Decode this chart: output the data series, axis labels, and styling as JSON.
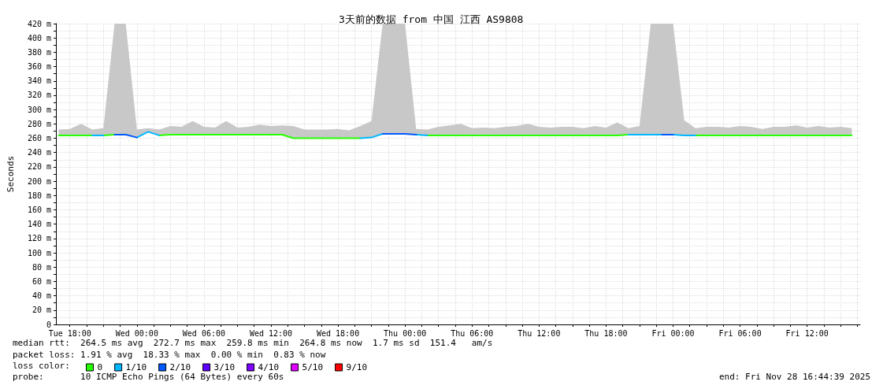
{
  "chart_data": {
    "type": "line",
    "title": "3天前的数据 from 中国 江西 AS9808",
    "ylabel": "Seconds",
    "legend_title": "loss color:",
    "annotations": [
      "median rtt:  264.5 ms avg  272.7 ms max  259.8 ms min  264.8 ms now  1.7 ms sd  151.4   am/s",
      "packet loss: 1.91 % avg  18.33 % max  0.00 % min  0.83 % now",
      "probe:       10 ICMP Echo Pings (64 Bytes) every 60s",
      "end: Fri Nov 28 16:44:39 2025"
    ],
    "x": [
      "2025-11-25T17:00",
      "2025-11-25T18:00",
      "2025-11-25T19:00",
      "2025-11-25T20:00",
      "2025-11-25T21:00",
      "2025-11-25T22:00",
      "2025-11-25T23:00",
      "2025-11-26T00:00",
      "2025-11-26T01:00",
      "2025-11-26T02:00",
      "2025-11-26T03:00",
      "2025-11-26T04:00",
      "2025-11-26T05:00",
      "2025-11-26T06:00",
      "2025-11-26T07:00",
      "2025-11-26T08:00",
      "2025-11-26T09:00",
      "2025-11-26T10:00",
      "2025-11-26T11:00",
      "2025-11-26T12:00",
      "2025-11-26T13:00",
      "2025-11-26T14:00",
      "2025-11-26T15:00",
      "2025-11-26T16:00",
      "2025-11-26T17:00",
      "2025-11-26T18:00",
      "2025-11-26T19:00",
      "2025-11-26T20:00",
      "2025-11-26T21:00",
      "2025-11-26T22:00",
      "2025-11-26T23:00",
      "2025-11-27T00:00",
      "2025-11-27T01:00",
      "2025-11-27T02:00",
      "2025-11-27T03:00",
      "2025-11-27T04:00",
      "2025-11-27T05:00",
      "2025-11-27T06:00",
      "2025-11-27T07:00",
      "2025-11-27T08:00",
      "2025-11-27T09:00",
      "2025-11-27T10:00",
      "2025-11-27T11:00",
      "2025-11-27T12:00",
      "2025-11-27T13:00",
      "2025-11-27T14:00",
      "2025-11-27T15:00",
      "2025-11-27T16:00",
      "2025-11-27T17:00",
      "2025-11-27T18:00",
      "2025-11-27T19:00",
      "2025-11-27T20:00",
      "2025-11-27T21:00",
      "2025-11-27T22:00",
      "2025-11-27T23:00",
      "2025-11-28T00:00",
      "2025-11-28T01:00",
      "2025-11-28T02:00",
      "2025-11-28T03:00",
      "2025-11-28T04:00",
      "2025-11-28T05:00",
      "2025-11-28T06:00",
      "2025-11-28T07:00",
      "2025-11-28T08:00",
      "2025-11-28T09:00",
      "2025-11-28T10:00",
      "2025-11-28T11:00",
      "2025-11-28T12:00",
      "2025-11-28T13:00",
      "2025-11-28T14:00",
      "2025-11-28T15:00",
      "2025-11-28T16:00"
    ],
    "series": [
      {
        "name": "0",
        "color": "#26ff00",
        "values": [
          264,
          264,
          264,
          264,
          264,
          265,
          null,
          null,
          null,
          264,
          265,
          265,
          265,
          265,
          265,
          265,
          265,
          265,
          265,
          265,
          265,
          260,
          260,
          260,
          260,
          260,
          260,
          260,
          null,
          null,
          null,
          null,
          null,
          264,
          264,
          264,
          264,
          264,
          264,
          264,
          264,
          264,
          264,
          264,
          264,
          264,
          264,
          264,
          264,
          264,
          264,
          265,
          null,
          null,
          null,
          null,
          null,
          264,
          264,
          264,
          264,
          264,
          264,
          264,
          264,
          264,
          264,
          264,
          264,
          264,
          264,
          264
        ],
        "lower": [
          264,
          264,
          264,
          264,
          264,
          265,
          265,
          261,
          269,
          264,
          265,
          265,
          265,
          265,
          265,
          265,
          265,
          265,
          265,
          265,
          265,
          260,
          260,
          260,
          260,
          260,
          260,
          260,
          261,
          266,
          266,
          266,
          265,
          264,
          264,
          264,
          264,
          264,
          264,
          264,
          264,
          264,
          264,
          264,
          264,
          264,
          264,
          264,
          264,
          264,
          264,
          265,
          265,
          265,
          265,
          265,
          264,
          264,
          264,
          264,
          264,
          264,
          264,
          264,
          264,
          264,
          264,
          264,
          264,
          264,
          264,
          264
        ],
        "upper": [
          272,
          273,
          280,
          272,
          274,
          420,
          420,
          272,
          274,
          272,
          277,
          276,
          284,
          276,
          275,
          284,
          275,
          276,
          279,
          277,
          278,
          277,
          272,
          272,
          272,
          273,
          271,
          277,
          284,
          420,
          420,
          420,
          273,
          272,
          276,
          278,
          280,
          274,
          275,
          274,
          276,
          277,
          280,
          276,
          275,
          276,
          276,
          274,
          277,
          275,
          282,
          274,
          277,
          420,
          420,
          420,
          285,
          274,
          276,
          276,
          275,
          277,
          276,
          273,
          276,
          276,
          278,
          275,
          277,
          275,
          276,
          274
        ]
      },
      {
        "name": "1/10",
        "color": "#00b8ff",
        "values": [
          null,
          null,
          null,
          264,
          264,
          null,
          null,
          261,
          269,
          264,
          null,
          null,
          null,
          null,
          null,
          null,
          null,
          null,
          null,
          null,
          null,
          null,
          null,
          null,
          null,
          null,
          null,
          260,
          261,
          266,
          null,
          null,
          265,
          264,
          null,
          null,
          null,
          null,
          null,
          null,
          null,
          null,
          null,
          null,
          null,
          null,
          null,
          null,
          null,
          null,
          null,
          265,
          265,
          265,
          265,
          265,
          264,
          264,
          null,
          null,
          null,
          null,
          null,
          null,
          null,
          null,
          null,
          null,
          null,
          null,
          null,
          null
        ]
      },
      {
        "name": "2/10",
        "color": "#0059ff",
        "values": [
          null,
          null,
          null,
          null,
          null,
          265,
          265,
          261,
          null,
          null,
          null,
          null,
          null,
          null,
          null,
          null,
          null,
          null,
          null,
          null,
          null,
          null,
          null,
          null,
          null,
          null,
          null,
          null,
          null,
          266,
          266,
          266,
          265,
          null,
          null,
          null,
          null,
          null,
          null,
          null,
          null,
          null,
          null,
          null,
          null,
          null,
          null,
          null,
          null,
          null,
          null,
          null,
          null,
          null,
          265,
          265,
          null,
          null,
          null,
          null,
          null,
          null,
          null,
          null,
          null,
          null,
          null,
          null,
          null,
          null,
          null,
          null
        ]
      },
      {
        "name": "3/10",
        "color": "#5e00ff",
        "values": [
          null,
          null,
          null,
          null,
          null,
          null,
          null,
          null,
          null,
          null,
          null,
          null,
          null,
          null,
          null,
          null,
          null,
          null,
          null,
          null,
          null,
          null,
          null,
          null,
          null,
          null,
          null,
          null,
          null,
          null,
          null,
          null,
          null,
          null,
          null,
          null,
          null,
          null,
          null,
          null,
          null,
          null,
          null,
          null,
          null,
          null,
          null,
          null,
          null,
          null,
          null,
          null,
          null,
          null,
          null,
          null,
          null,
          null,
          null,
          null,
          null,
          null,
          null,
          null,
          null,
          null,
          null,
          null,
          null,
          null,
          null,
          null
        ]
      },
      {
        "name": "4/10",
        "color": "#7e00ff",
        "values": [
          null,
          null,
          null,
          null,
          null,
          null,
          null,
          null,
          null,
          null,
          null,
          null,
          null,
          null,
          null,
          null,
          null,
          null,
          null,
          null,
          null,
          null,
          null,
          null,
          null,
          null,
          null,
          null,
          null,
          null,
          null,
          null,
          null,
          null,
          null,
          null,
          null,
          null,
          null,
          null,
          null,
          null,
          null,
          null,
          null,
          null,
          null,
          null,
          null,
          null,
          null,
          null,
          null,
          null,
          null,
          null,
          null,
          null,
          null,
          null,
          null,
          null,
          null,
          null,
          null,
          null,
          null,
          null,
          null,
          null,
          null,
          null
        ]
      },
      {
        "name": "5/10",
        "color": "#dd00ff",
        "values": [
          null,
          null,
          null,
          null,
          null,
          null,
          null,
          null,
          null,
          null,
          null,
          null,
          null,
          null,
          null,
          null,
          null,
          null,
          null,
          null,
          null,
          null,
          null,
          null,
          null,
          null,
          null,
          null,
          null,
          null,
          null,
          null,
          null,
          null,
          null,
          null,
          null,
          null,
          null,
          null,
          null,
          null,
          null,
          null,
          null,
          null,
          null,
          null,
          null,
          null,
          null,
          null,
          null,
          null,
          null,
          null,
          null,
          null,
          null,
          null,
          null,
          null,
          null,
          null,
          null,
          null,
          null,
          null,
          null,
          null,
          null,
          null
        ]
      },
      {
        "name": "9/10",
        "color": "#ff0000",
        "values": [
          null,
          null,
          null,
          null,
          null,
          null,
          null,
          null,
          null,
          null,
          null,
          null,
          null,
          null,
          null,
          null,
          null,
          null,
          null,
          null,
          null,
          null,
          null,
          null,
          null,
          null,
          null,
          null,
          null,
          null,
          null,
          null,
          null,
          null,
          null,
          null,
          null,
          null,
          null,
          null,
          null,
          null,
          null,
          null,
          null,
          null,
          null,
          null,
          null,
          null,
          null,
          null,
          null,
          null,
          null,
          null,
          null,
          null,
          null,
          null,
          null,
          null,
          null,
          null,
          null,
          null,
          null,
          null,
          null,
          null,
          null,
          null
        ]
      }
    ],
    "xlim": [
      "2025-11-25T16:45",
      "2025-11-28T16:45"
    ],
    "xticks": [
      {
        "value": "2025-11-25T18:00",
        "label": "Tue 18:00"
      },
      {
        "value": "2025-11-25T19:30",
        "label": null
      },
      {
        "value": "2025-11-25T21:00",
        "label": null
      },
      {
        "value": "2025-11-25T22:30",
        "label": null
      },
      {
        "value": "2025-11-26T00:00",
        "label": "Wed 00:00"
      },
      {
        "value": "2025-11-26T01:30",
        "label": null
      },
      {
        "value": "2025-11-26T03:00",
        "label": null
      },
      {
        "value": "2025-11-26T04:30",
        "label": null
      },
      {
        "value": "2025-11-26T06:00",
        "label": "Wed 06:00"
      },
      {
        "value": "2025-11-26T07:30",
        "label": null
      },
      {
        "value": "2025-11-26T09:00",
        "label": null
      },
      {
        "value": "2025-11-26T10:30",
        "label": null
      },
      {
        "value": "2025-11-26T12:00",
        "label": "Wed 12:00"
      },
      {
        "value": "2025-11-26T13:30",
        "label": null
      },
      {
        "value": "2025-11-26T15:00",
        "label": null
      },
      {
        "value": "2025-11-26T16:30",
        "label": null
      },
      {
        "value": "2025-11-26T18:00",
        "label": "Wed 18:00"
      },
      {
        "value": "2025-11-26T19:30",
        "label": null
      },
      {
        "value": "2025-11-26T21:00",
        "label": null
      },
      {
        "value": "2025-11-26T22:30",
        "label": null
      },
      {
        "value": "2025-11-27T00:00",
        "label": "Thu 00:00"
      },
      {
        "value": "2025-11-27T01:30",
        "label": null
      },
      {
        "value": "2025-11-27T03:00",
        "label": null
      },
      {
        "value": "2025-11-27T04:30",
        "label": null
      },
      {
        "value": "2025-11-27T06:00",
        "label": "Thu 06:00"
      },
      {
        "value": "2025-11-27T07:30",
        "label": null
      },
      {
        "value": "2025-11-27T09:00",
        "label": null
      },
      {
        "value": "2025-11-27T10:30",
        "label": null
      },
      {
        "value": "2025-11-27T12:00",
        "label": "Thu 12:00"
      },
      {
        "value": "2025-11-27T13:30",
        "label": null
      },
      {
        "value": "2025-11-27T15:00",
        "label": null
      },
      {
        "value": "2025-11-27T16:30",
        "label": null
      },
      {
        "value": "2025-11-27T18:00",
        "label": "Thu 18:00"
      },
      {
        "value": "2025-11-27T19:30",
        "label": null
      },
      {
        "value": "2025-11-27T21:00",
        "label": null
      },
      {
        "value": "2025-11-27T22:30",
        "label": null
      },
      {
        "value": "2025-11-28T00:00",
        "label": "Fri 00:00"
      },
      {
        "value": "2025-11-28T01:30",
        "label": null
      },
      {
        "value": "2025-11-28T03:00",
        "label": null
      },
      {
        "value": "2025-11-28T04:30",
        "label": null
      },
      {
        "value": "2025-11-28T06:00",
        "label": "Fri 06:00"
      },
      {
        "value": "2025-11-28T07:30",
        "label": null
      },
      {
        "value": "2025-11-28T09:00",
        "label": null
      },
      {
        "value": "2025-11-28T10:30",
        "label": null
      },
      {
        "value": "2025-11-28T12:00",
        "label": "Fri 12:00"
      },
      {
        "value": "2025-11-28T13:30",
        "label": null
      },
      {
        "value": "2025-11-28T15:00",
        "label": null
      },
      {
        "value": "2025-11-28T16:30",
        "label": null
      }
    ],
    "ylim": [
      0,
      420
    ],
    "yticks": [
      0,
      {
        "value": 10,
        "label": null
      },
      {
        "value": 20,
        "label": "20 m"
      },
      {
        "value": 30,
        "label": null
      },
      {
        "value": 40,
        "label": "40 m"
      },
      {
        "value": 50,
        "label": null
      },
      {
        "value": 60,
        "label": "60 m"
      },
      {
        "value": 70,
        "label": null
      },
      {
        "value": 80,
        "label": "80 m"
      },
      {
        "value": 90,
        "label": null
      },
      {
        "value": 100,
        "label": "100 m"
      },
      {
        "value": 110,
        "label": null
      },
      {
        "value": 120,
        "label": "120 m"
      },
      {
        "value": 130,
        "label": null
      },
      {
        "value": 140,
        "label": "140 m"
      },
      {
        "value": 150,
        "label": null
      },
      {
        "value": 160,
        "label": "160 m"
      },
      {
        "value": 170,
        "label": null
      },
      {
        "value": 180,
        "label": "180 m"
      },
      {
        "value": 190,
        "label": null
      },
      {
        "value": 200,
        "label": "200 m"
      },
      {
        "value": 210,
        "label": null
      },
      {
        "value": 220,
        "label": "220 m"
      },
      {
        "value": 230,
        "label": null
      },
      {
        "value": 240,
        "label": "240 m"
      },
      {
        "value": 250,
        "label": null
      },
      {
        "value": 260,
        "label": "260 m"
      },
      {
        "value": 270,
        "label": null
      },
      {
        "value": 280,
        "label": "280 m"
      },
      {
        "value": 290,
        "label": null
      },
      {
        "value": 300,
        "label": "300 m"
      },
      {
        "value": 310,
        "label": null
      },
      {
        "value": 320,
        "label": "320 m"
      },
      {
        "value": 330,
        "label": null
      },
      {
        "value": 340,
        "label": "340 m"
      },
      {
        "value": 350,
        "label": null
      },
      {
        "value": 360,
        "label": "360 m"
      },
      {
        "value": 370,
        "label": null
      },
      {
        "value": 380,
        "label": "380 m"
      },
      {
        "value": 390,
        "label": null
      },
      {
        "value": 400,
        "label": "400 m"
      },
      {
        "value": 410,
        "label": null
      },
      {
        "value": 420,
        "label": "420 m"
      }
    ],
    "grid": true,
    "legend": "bottom left",
    "marker": "none",
    "line_style": "solid"
  }
}
